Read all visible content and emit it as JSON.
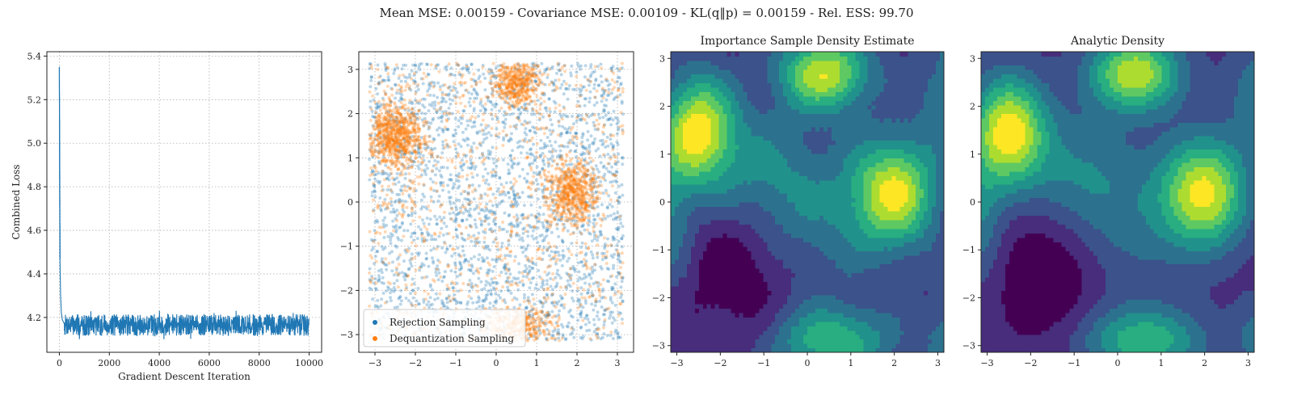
{
  "suptitle": "Mean MSE: 0.00159 - Covariance MSE: 0.00109 - KL(q‖p) = 0.00159 - Rel. ESS: 99.70",
  "chart_data": [
    {
      "type": "line",
      "title": "",
      "xlabel": "Gradient Descent Iteration",
      "ylabel": "Combined Loss",
      "xlim": [
        -500,
        10500
      ],
      "ylim": [
        4.04,
        5.42
      ],
      "xticks": [
        0,
        2000,
        4000,
        6000,
        8000,
        10000
      ],
      "yticks": [
        4.2,
        4.4,
        4.6,
        4.8,
        5.0,
        5.2,
        5.4
      ],
      "grid": true,
      "color": "#1f77b4",
      "series": [
        {
          "x": [
            0,
            10,
            20,
            30,
            50,
            80,
            120,
            200,
            400,
            1000,
            2000,
            4000,
            6000,
            8000,
            10000
          ],
          "y": [
            5.35,
            4.88,
            4.55,
            4.42,
            4.3,
            4.22,
            4.19,
            4.17,
            4.16,
            4.16,
            4.16,
            4.16,
            4.16,
            4.16,
            4.16
          ],
          "noise_band": [
            4.11,
            4.22
          ]
        }
      ]
    },
    {
      "type": "scatter",
      "title": "",
      "xlim": [
        -3.4,
        3.4
      ],
      "ylim": [
        -3.4,
        3.4
      ],
      "xticks": [
        -3,
        -2,
        -1,
        0,
        1,
        2,
        3
      ],
      "yticks": [
        -3,
        -2,
        -1,
        0,
        1,
        2,
        3
      ],
      "grid": true,
      "sample_range": [
        -3.14,
        3.14
      ],
      "legend_position": "lower-left",
      "series": [
        {
          "name": "Rejection Sampling",
          "color": "#1f77b4"
        },
        {
          "name": "Dequantization Sampling",
          "color": "#ff7f0e"
        }
      ]
    },
    {
      "type": "heatmap",
      "title": "Importance Sample Density Estimate",
      "xlim": [
        -3.14,
        3.14
      ],
      "ylim": [
        -3.14,
        3.14
      ],
      "xticks": [
        -3,
        -2,
        -1,
        0,
        1,
        2,
        3
      ],
      "yticks": [
        -3,
        -2,
        -1,
        0,
        1,
        2,
        3
      ],
      "colormap": [
        "#440154",
        "#472d7b",
        "#3b528b",
        "#2c728e",
        "#21918c",
        "#28ae80",
        "#5ec962",
        "#addc30",
        "#fde725"
      ],
      "levels": 9
    },
    {
      "type": "heatmap",
      "title": "Analytic Density",
      "xlim": [
        -3.14,
        3.14
      ],
      "ylim": [
        -3.14,
        3.14
      ],
      "xticks": [
        -3,
        -2,
        -1,
        0,
        1,
        2,
        3
      ],
      "yticks": [
        -3,
        -2,
        -1,
        0,
        1,
        2,
        3
      ],
      "colormap": [
        "#440154",
        "#472d7b",
        "#3b528b",
        "#2c728e",
        "#21918c",
        "#28ae80",
        "#5ec962",
        "#addc30",
        "#fde725"
      ],
      "levels": 9
    }
  ]
}
